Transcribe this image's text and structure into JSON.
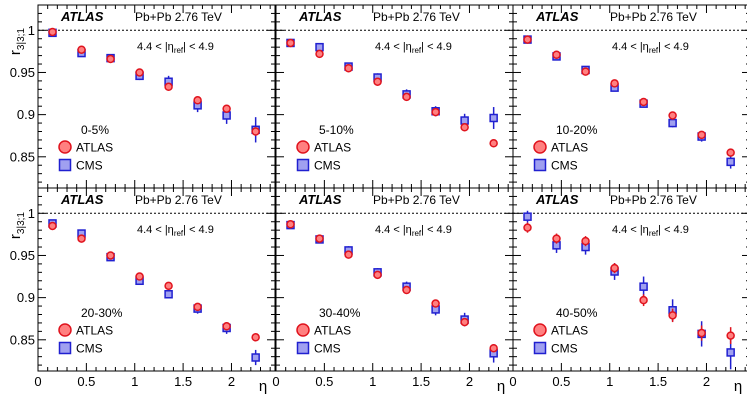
{
  "figure": {
    "ylabel_main": "r",
    "ylabel_sub": "3|3;1",
    "xlabel": "η",
    "atlas_label": "ATLAS",
    "system_label": "Pb+Pb 2.76 TeV",
    "eta_ref_text": {
      "prefix": "4.4 < |η",
      "sub": "ref",
      "suffix": "| < 4.9"
    },
    "legend_atlas": "ATLAS",
    "legend_cms": "CMS",
    "colors": {
      "atlas_fill": "#ff8080",
      "atlas_edge": "#e0141e",
      "cms_fill": "#a0a0f0",
      "cms_edge": "#2020d0",
      "reference_line": "#000000"
    }
  },
  "chart_data": [
    {
      "type": "scatter",
      "panel": "0-5%",
      "centrality": "0-5%",
      "xlim": [
        0,
        2.45
      ],
      "ylim": [
        0.813,
        1.03
      ],
      "xticks": [
        "0",
        "0.5",
        "1",
        "1.5",
        "2"
      ],
      "yticks": [
        "0.85",
        "0.9",
        "0.95",
        "1"
      ],
      "reference_y": 1,
      "series": [
        {
          "name": "ATLAS",
          "x": [
            0.15,
            0.45,
            0.75,
            1.05,
            1.35,
            1.65,
            1.95,
            2.25
          ],
          "y": [
            0.998,
            0.977,
            0.966,
            0.95,
            0.933,
            0.917,
            0.907,
            0.88
          ],
          "err": [
            0.002,
            0.002,
            0.002,
            0.002,
            0.003,
            0.003,
            0.003,
            0.005
          ]
        },
        {
          "name": "CMS",
          "x": [
            0.15,
            0.45,
            0.75,
            1.05,
            1.35,
            1.65,
            1.95,
            2.25
          ],
          "y": [
            0.997,
            0.973,
            0.967,
            0.946,
            0.939,
            0.911,
            0.899,
            0.882
          ],
          "err": [
            0.004,
            0.004,
            0.004,
            0.005,
            0.007,
            0.008,
            0.01,
            0.015
          ]
        }
      ]
    },
    {
      "type": "scatter",
      "panel": "5-10%",
      "centrality": "5-10%",
      "xlim": [
        0,
        2.45
      ],
      "ylim": [
        0.813,
        1.03
      ],
      "xticks": [
        "0",
        "0.5",
        "1",
        "1.5",
        "2"
      ],
      "yticks": [
        "0.85",
        "0.9",
        "0.95",
        "1"
      ],
      "reference_y": 1,
      "series": [
        {
          "name": "ATLAS",
          "x": [
            0.15,
            0.45,
            0.75,
            1.05,
            1.35,
            1.65,
            1.95,
            2.25
          ],
          "y": [
            0.985,
            0.972,
            0.955,
            0.939,
            0.921,
            0.903,
            0.885,
            0.866
          ],
          "err": [
            0.002,
            0.002,
            0.002,
            0.002,
            0.003,
            0.003,
            0.003,
            0.003
          ]
        },
        {
          "name": "CMS",
          "x": [
            0.15,
            0.45,
            0.75,
            1.05,
            1.35,
            1.65,
            1.95,
            2.25
          ],
          "y": [
            0.985,
            0.98,
            0.957,
            0.944,
            0.924,
            0.904,
            0.893,
            0.896
          ],
          "err": [
            0.003,
            0.004,
            0.004,
            0.005,
            0.006,
            0.006,
            0.008,
            0.013
          ]
        }
      ]
    },
    {
      "type": "scatter",
      "panel": "10-20%",
      "centrality": "10-20%",
      "xlim": [
        0,
        2.45
      ],
      "ylim": [
        0.813,
        1.03
      ],
      "xticks": [
        "0",
        "0.5",
        "1",
        "1.5",
        "2"
      ],
      "yticks": [
        "0.85",
        "0.9",
        "0.95",
        "1"
      ],
      "reference_y": 1,
      "series": [
        {
          "name": "ATLAS",
          "x": [
            0.15,
            0.45,
            0.75,
            1.05,
            1.35,
            1.65,
            1.95,
            2.25
          ],
          "y": [
            0.989,
            0.971,
            0.951,
            0.937,
            0.915,
            0.899,
            0.876,
            0.855
          ],
          "err": [
            0.002,
            0.002,
            0.002,
            0.002,
            0.002,
            0.002,
            0.003,
            0.003
          ]
        },
        {
          "name": "CMS",
          "x": [
            0.15,
            0.45,
            0.75,
            1.05,
            1.35,
            1.65,
            1.95,
            2.25
          ],
          "y": [
            0.989,
            0.969,
            0.953,
            0.932,
            0.913,
            0.89,
            0.874,
            0.844
          ],
          "err": [
            0.003,
            0.003,
            0.004,
            0.004,
            0.004,
            0.005,
            0.006,
            0.008
          ]
        }
      ]
    },
    {
      "type": "scatter",
      "panel": "20-30%",
      "centrality": "20-30%",
      "xlim": [
        0,
        2.45
      ],
      "ylim": [
        0.813,
        1.03
      ],
      "xticks": [
        "0",
        "0.5",
        "1",
        "1.5",
        "2"
      ],
      "yticks": [
        "0.85",
        "0.9",
        "0.95",
        "1"
      ],
      "reference_y": 1,
      "series": [
        {
          "name": "ATLAS",
          "x": [
            0.15,
            0.45,
            0.75,
            1.05,
            1.35,
            1.65,
            1.95,
            2.25
          ],
          "y": [
            0.985,
            0.97,
            0.95,
            0.925,
            0.914,
            0.889,
            0.866,
            0.853
          ],
          "err": [
            0.002,
            0.002,
            0.002,
            0.002,
            0.002,
            0.002,
            0.003,
            0.003
          ]
        },
        {
          "name": "CMS",
          "x": [
            0.15,
            0.45,
            0.75,
            1.05,
            1.35,
            1.65,
            1.95,
            2.25
          ],
          "y": [
            0.988,
            0.976,
            0.948,
            0.92,
            0.904,
            0.887,
            0.864,
            0.829
          ],
          "err": [
            0.003,
            0.004,
            0.004,
            0.005,
            0.005,
            0.006,
            0.007,
            0.009
          ]
        }
      ]
    },
    {
      "type": "scatter",
      "panel": "30-40%",
      "centrality": "30-40%",
      "xlim": [
        0,
        2.45
      ],
      "ylim": [
        0.813,
        1.03
      ],
      "xticks": [
        "0",
        "0.5",
        "1",
        "1.5",
        "2"
      ],
      "yticks": [
        "0.85",
        "0.9",
        "0.95",
        "1"
      ],
      "reference_y": 1,
      "series": [
        {
          "name": "ATLAS",
          "x": [
            0.15,
            0.45,
            0.75,
            1.05,
            1.35,
            1.65,
            1.95,
            2.25
          ],
          "y": [
            0.987,
            0.97,
            0.951,
            0.927,
            0.909,
            0.893,
            0.871,
            0.84
          ],
          "err": [
            0.002,
            0.002,
            0.002,
            0.003,
            0.003,
            0.003,
            0.004,
            0.004
          ]
        },
        {
          "name": "CMS",
          "x": [
            0.15,
            0.45,
            0.75,
            1.05,
            1.35,
            1.65,
            1.95,
            2.25
          ],
          "y": [
            0.986,
            0.969,
            0.956,
            0.93,
            0.913,
            0.886,
            0.874,
            0.834
          ],
          "err": [
            0.004,
            0.004,
            0.005,
            0.005,
            0.006,
            0.007,
            0.008,
            0.011
          ]
        }
      ]
    },
    {
      "type": "scatter",
      "panel": "40-50%",
      "centrality": "40-50%",
      "xlim": [
        0,
        2.45
      ],
      "ylim": [
        0.813,
        1.03
      ],
      "xticks": [
        "0",
        "0.5",
        "1",
        "1.5",
        "2"
      ],
      "yticks": [
        "0.85",
        "0.9",
        "0.95",
        "1"
      ],
      "reference_y": 1,
      "series": [
        {
          "name": "ATLAS",
          "x": [
            0.15,
            0.45,
            0.75,
            1.05,
            1.35,
            1.65,
            1.95,
            2.25
          ],
          "y": [
            0.983,
            0.97,
            0.967,
            0.935,
            0.897,
            0.879,
            0.858,
            0.855
          ],
          "err": [
            0.006,
            0.006,
            0.006,
            0.006,
            0.007,
            0.008,
            0.009,
            0.01
          ]
        },
        {
          "name": "CMS",
          "x": [
            0.15,
            0.45,
            0.75,
            1.05,
            1.35,
            1.65,
            1.95,
            2.25
          ],
          "y": [
            0.996,
            0.962,
            0.96,
            0.931,
            0.913,
            0.885,
            0.857,
            0.835
          ],
          "err": [
            0.007,
            0.009,
            0.009,
            0.01,
            0.012,
            0.013,
            0.015,
            0.02
          ]
        }
      ]
    }
  ]
}
